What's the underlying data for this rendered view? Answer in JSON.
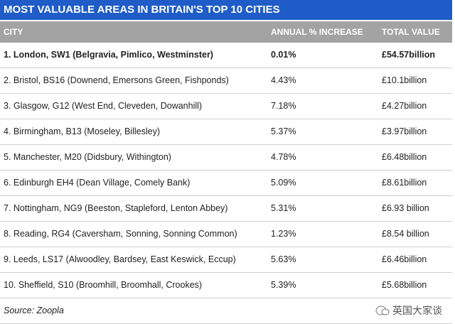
{
  "header": {
    "title": "MOST VALUABLE AREAS IN BRITAIN'S TOP 10 CITIES"
  },
  "table": {
    "columns": [
      "CITY",
      "ANNUAL % INCREASE",
      "TOTAL VALUE"
    ],
    "rows": [
      [
        "1. London, SW1 (Belgravia, Pimlico, Westminster)",
        "0.01%",
        "£54.57billion"
      ],
      [
        "2. Bristol, BS16 (Downend, Emersons Green, Fishponds)",
        "4.43%",
        "£10.1billion"
      ],
      [
        "3. Glasgow, G12 (West End, Cleveden, Dowanhill)",
        "7.18%",
        "£4.27billion"
      ],
      [
        "4. Birmingham, B13 (Moseley, Billesley)",
        "5.37%",
        "£3.97billion"
      ],
      [
        "5. Manchester, M20 (Didsbury, Withington)",
        "4.78%",
        "£6.48billion"
      ],
      [
        "6. Edinburgh EH4 (Dean Village, Comely Bank)",
        "5.09%",
        "£8.61billion"
      ],
      [
        "7. Nottingham, NG9 (Beeston, Stapleford, Lenton Abbey)",
        "5.31%",
        "£6.93 billion"
      ],
      [
        "8. Reading, RG4 (Caversham, Sonning, Sonning Common)",
        "1.23%",
        "£8.54 billion"
      ],
      [
        "9. Leeds, LS17 (Alwoodley, Bardsey, East Keswick, Eccup)",
        "5.63%",
        "£6.46billion"
      ],
      [
        "10. Sheffield, S10 (Broomhill, Broomhall, Crookes)",
        "5.39%",
        "£5.68billion"
      ]
    ]
  },
  "source": "Source: Zoopla",
  "watermark": "英国大家谈"
}
